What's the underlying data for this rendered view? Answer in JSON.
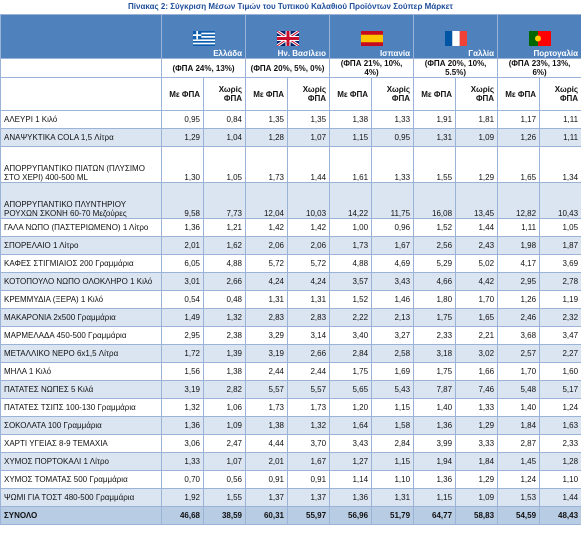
{
  "title": "Πίνακας 2: Σύγκριση Μέσων Τιμών του Τυπικού Καλαθιού Προϊόντων Σούπερ Μάρκετ",
  "countries": [
    {
      "name": "Ελλάδα",
      "vat": "(ΦΠΑ 24%, 13%)"
    },
    {
      "name": "Ην. Βασίλειο",
      "vat": "(ΦΠΑ 20%, 5%, 0%)"
    },
    {
      "name": "Ισπανία",
      "vat": "(ΦΠΑ 21%, 10%, 4%)"
    },
    {
      "name": "Γαλλία",
      "vat": "(ΦΠΑ 20%, 10%, 5.5%)"
    },
    {
      "name": "Πορτογαλία",
      "vat": "(ΦΠΑ 23%, 13%, 6%)"
    }
  ],
  "subheaders": [
    "Με ΦΠΑ",
    "Χωρίς ΦΠΑ"
  ],
  "rows": [
    {
      "label": "ΑΛΕΥΡΙ 1 Κιλό",
      "values": [
        "0,95",
        "0,84",
        "1,35",
        "1,35",
        "1,38",
        "1,33",
        "1,91",
        "1,81",
        "1,17",
        "1,11"
      ]
    },
    {
      "label": "ΑΝΑΨΥΚΤΙΚΑ COLA 1,5 Λίτρα",
      "values": [
        "1,29",
        "1,04",
        "1,28",
        "1,07",
        "1,15",
        "0,95",
        "1,31",
        "1,09",
        "1,26",
        "1,11"
      ]
    },
    {
      "label": "ΑΠΟΡΡΥΠΑΝΤΙΚΟ ΠΙΑΤΩΝ (ΠΛΥΣΙΜΟ ΣΤΟ ΧΕΡΙ) 400-500 ML",
      "values": [
        "1,30",
        "1,05",
        "1,73",
        "1,44",
        "1,61",
        "1,33",
        "1,55",
        "1,29",
        "1,65",
        "1,34"
      ]
    },
    {
      "label": "ΑΠΟΡΡΥΠΑΝΤΙΚΟ ΠΛΥΝΤΗΡΙΟΥ ΡΟΥΧΩΝ ΣΚΟΝΗ 60-70 Μεζούρες",
      "values": [
        "9,58",
        "7,73",
        "12,04",
        "10,03",
        "14,22",
        "11,75",
        "16,08",
        "13,45",
        "12,82",
        "10,43"
      ]
    },
    {
      "label": "ΓΑΛΑ ΝΩΠΟ (ΠΑΣΤΕΡΙΩΜΕΝΟ) 1 Λίτρο",
      "values": [
        "1,36",
        "1,21",
        "1,42",
        "1,42",
        "1,00",
        "0,96",
        "1,52",
        "1,44",
        "1,11",
        "1,05"
      ]
    },
    {
      "label": "ΣΠΟΡΕΛΑΙΟ 1 Λίτρο",
      "values": [
        "2,01",
        "1,62",
        "2,06",
        "2,06",
        "1,73",
        "1,67",
        "2,56",
        "2,43",
        "1,98",
        "1,87"
      ]
    },
    {
      "label": "ΚΑΦΕΣ ΣΤΙΓΜΙΑΙΟΣ 200 Γραμμάρια",
      "values": [
        "6,05",
        "4,88",
        "5,72",
        "5,72",
        "4,88",
        "4,69",
        "5,29",
        "5,02",
        "4,17",
        "3,69"
      ]
    },
    {
      "label": "ΚΟΤΟΠΟΥΛΟ ΝΩΠΟ ΟΛΟΚΛΗΡΟ 1 Κιλό",
      "values": [
        "3,01",
        "2,66",
        "4,24",
        "4,24",
        "3,57",
        "3,43",
        "4,66",
        "4,42",
        "2,95",
        "2,78"
      ]
    },
    {
      "label": "ΚΡΕΜΜΥΔΙΑ (ΞΕΡΑ) 1 Κιλό",
      "values": [
        "0,54",
        "0,48",
        "1,31",
        "1,31",
        "1,52",
        "1,46",
        "1,80",
        "1,70",
        "1,26",
        "1,19"
      ]
    },
    {
      "label": "ΜΑΚΑΡΟΝΙΑ 2x500 Γραμμάρια",
      "values": [
        "1,49",
        "1,32",
        "2,83",
        "2,83",
        "2,22",
        "2,13",
        "1,75",
        "1,65",
        "2,46",
        "2,32"
      ]
    },
    {
      "label": "ΜΑΡΜΕΛΑΔΑ 450-500 Γραμμάρια",
      "values": [
        "2,95",
        "2,38",
        "3,29",
        "3,14",
        "3,40",
        "3,27",
        "2,33",
        "2,21",
        "3,68",
        "3,47"
      ]
    },
    {
      "label": "ΜΕΤΑΛΛΙΚΟ ΝΕΡΟ 6x1,5 Λίτρα",
      "values": [
        "1,72",
        "1,39",
        "3,19",
        "2,66",
        "2,84",
        "2,58",
        "3,18",
        "3,02",
        "2,57",
        "2,27"
      ]
    },
    {
      "label": "ΜΗΛΑ 1 Κιλό",
      "values": [
        "1,56",
        "1,38",
        "2,44",
        "2,44",
        "1,75",
        "1,69",
        "1,75",
        "1,66",
        "1,70",
        "1,60"
      ]
    },
    {
      "label": "ΠΑΤΑΤΕΣ ΝΩΠΕΣ 5 Κιλά",
      "values": [
        "3,19",
        "2,82",
        "5,57",
        "5,57",
        "5,65",
        "5,43",
        "7,87",
        "7,46",
        "5,48",
        "5,17"
      ]
    },
    {
      "label": "ΠΑΤΑΤΕΣ ΤΣΙΠΣ 100-130 Γραμμάρια",
      "values": [
        "1,32",
        "1,06",
        "1,73",
        "1,73",
        "1,20",
        "1,15",
        "1,40",
        "1,33",
        "1,40",
        "1,24"
      ]
    },
    {
      "label": "ΣΟΚΟΛΑΤΑ 100 Γραμμάρια",
      "values": [
        "1,36",
        "1,09",
        "1,38",
        "1,32",
        "1,64",
        "1,58",
        "1,36",
        "1,29",
        "1,84",
        "1,63"
      ]
    },
    {
      "label": "ΧΑΡΤΙ ΥΓΕΙΑΣ 8-9 ΤΕΜΑΧΙΑ",
      "values": [
        "3,06",
        "2,47",
        "4,44",
        "3,70",
        "3,43",
        "2,84",
        "3,99",
        "3,33",
        "2,87",
        "2,33"
      ]
    },
    {
      "label": "ΧΥΜΟΣ ΠΟΡΤΟΚΑΛΙ 1 Λίτρο",
      "values": [
        "1,33",
        "1,07",
        "2,01",
        "1,67",
        "1,27",
        "1,15",
        "1,94",
        "1,84",
        "1,45",
        "1,28"
      ]
    },
    {
      "label": "ΧΥΜΟΣ ΤΟΜΑΤΑΣ 500 Γραμμάρια",
      "values": [
        "0,70",
        "0,56",
        "0,91",
        "0,91",
        "1,14",
        "1,10",
        "1,36",
        "1,29",
        "1,24",
        "1,10"
      ]
    },
    {
      "label": "ΨΩΜΙ ΓΙΑ ΤΟΣΤ 480-500 Γραμμάρια",
      "values": [
        "1,92",
        "1,55",
        "1,37",
        "1,37",
        "1,36",
        "1,31",
        "1,15",
        "1,09",
        "1,53",
        "1,44"
      ]
    }
  ],
  "total": {
    "label": "ΣΥΝΟΛΟ",
    "values": [
      "46,68",
      "38,59",
      "60,31",
      "55,97",
      "56,96",
      "51,79",
      "64,77",
      "58,83",
      "54,59",
      "48,43"
    ]
  }
}
